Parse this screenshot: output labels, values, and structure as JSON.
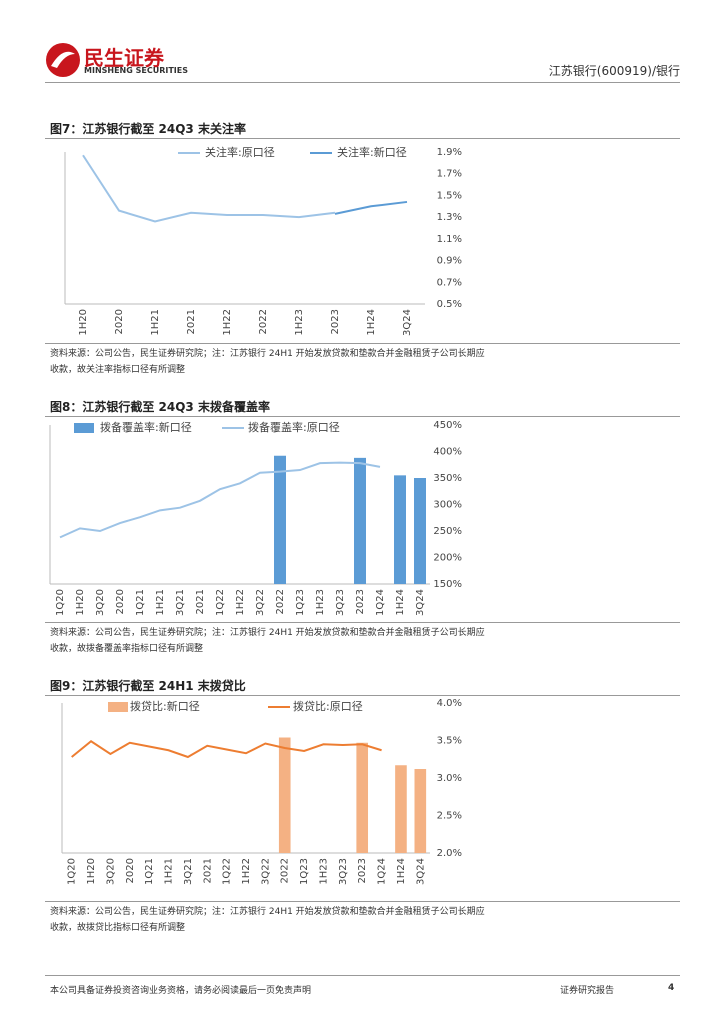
{
  "header": {
    "brand": "民生证券",
    "brand_en": "MINSHENG SECURITIES",
    "report": "江苏银行(600919)/银行"
  },
  "chart_data": [
    {
      "type": "line",
      "title": "图7：江苏银行截至 24Q3 末关注率",
      "categories": [
        "1H20",
        "2020",
        "1H21",
        "2021",
        "1H22",
        "2022",
        "1H23",
        "2023",
        "1H24",
        "3Q24"
      ],
      "series": [
        {
          "name": "关注率:原口径",
          "type": "line",
          "color": "#9dc3e6",
          "values": [
            1.87,
            1.36,
            1.26,
            1.34,
            1.32,
            1.32,
            1.3,
            1.34,
            null,
            null
          ]
        },
        {
          "name": "关注率:新口径",
          "type": "line",
          "color": "#5b9bd5",
          "values": [
            null,
            null,
            null,
            null,
            null,
            null,
            null,
            1.33,
            1.4,
            1.44
          ]
        }
      ],
      "ylim": [
        0.5,
        1.9
      ],
      "yticks": [
        {
          "value": 0.5,
          "label": "0.5%"
        },
        {
          "value": 0.7,
          "label": "0.7%"
        },
        {
          "value": 0.9,
          "label": "0.9%"
        },
        {
          "value": 1.1,
          "label": "1.1%"
        },
        {
          "value": 1.3,
          "label": "1.3%"
        },
        {
          "value": 1.5,
          "label": "1.5%"
        },
        {
          "value": 1.7,
          "label": "1.7%"
        },
        {
          "value": 1.9,
          "label": "1.9%"
        }
      ],
      "grid": false,
      "note": "资料来源：公司公告，民生证券研究院；注：江苏银行 24H1 开始发放贷款和垫款合并金融租赁子公司长期应收款，故关注率指标口径有所调整"
    },
    {
      "type": "combo",
      "title": "图8：江苏银行截至 24Q3 末拨备覆盖率",
      "categories": [
        "1Q20",
        "1H20",
        "3Q20",
        "2020",
        "1Q21",
        "1H21",
        "3Q21",
        "2021",
        "1Q22",
        "1H22",
        "3Q22",
        "2022",
        "1Q23",
        "1H23",
        "3Q23",
        "2023",
        "1Q24",
        "1H24",
        "3Q24"
      ],
      "series": [
        {
          "name": "拨备覆盖率:新口径",
          "type": "bar",
          "color": "#5b9bd5",
          "values": [
            null,
            null,
            null,
            null,
            null,
            null,
            null,
            null,
            null,
            null,
            null,
            392,
            null,
            null,
            null,
            388,
            null,
            355,
            350
          ]
        },
        {
          "name": "拨备覆盖率:原口径",
          "type": "line",
          "color": "#9dc3e6",
          "values": [
            238,
            255,
            250,
            265,
            276,
            289,
            294,
            307,
            329,
            340,
            360,
            362,
            365,
            378,
            379,
            378,
            371,
            null,
            null
          ]
        }
      ],
      "ylim": [
        150,
        450
      ],
      "yticks": [
        {
          "value": 150,
          "label": "150%"
        },
        {
          "value": 200,
          "label": "200%"
        },
        {
          "value": 250,
          "label": "250%"
        },
        {
          "value": 300,
          "label": "300%"
        },
        {
          "value": 350,
          "label": "350%"
        },
        {
          "value": 400,
          "label": "400%"
        },
        {
          "value": 450,
          "label": "450%"
        }
      ],
      "grid": false,
      "note": "资料来源：公司公告，民生证券研究院；注：江苏银行 24H1 开始发放贷款和垫款合并金融租赁子公司长期应收款，故拨备覆盖率指标口径有所调整"
    },
    {
      "type": "combo",
      "title": "图9：江苏银行截至 24H1 末拨贷比",
      "categories": [
        "1Q20",
        "1H20",
        "3Q20",
        "2020",
        "1Q21",
        "1H21",
        "3Q21",
        "2021",
        "1Q22",
        "1H22",
        "3Q22",
        "2022",
        "1Q23",
        "1H23",
        "3Q23",
        "2023",
        "1Q24",
        "1H24",
        "3Q24"
      ],
      "series": [
        {
          "name": "拨贷比:新口径",
          "type": "bar",
          "color": "#f4b183",
          "values": [
            null,
            null,
            null,
            null,
            null,
            null,
            null,
            null,
            null,
            null,
            null,
            3.54,
            null,
            null,
            null,
            3.47,
            null,
            3.17,
            3.12
          ]
        },
        {
          "name": "拨贷比:原口径",
          "type": "line",
          "color": "#ed7d31",
          "values": [
            3.28,
            3.49,
            3.32,
            3.47,
            3.42,
            3.37,
            3.28,
            3.43,
            3.38,
            3.33,
            3.46,
            3.4,
            3.36,
            3.45,
            3.44,
            3.45,
            3.37,
            null,
            null
          ]
        }
      ],
      "ylim": [
        2.0,
        4.0
      ],
      "yticks": [
        {
          "value": 2.0,
          "label": "2.0%"
        },
        {
          "value": 2.5,
          "label": "2.5%"
        },
        {
          "value": 3.0,
          "label": "3.0%"
        },
        {
          "value": 3.5,
          "label": "3.5%"
        },
        {
          "value": 4.0,
          "label": "4.0%"
        }
      ],
      "grid": false,
      "note": "资料来源：公司公告，民生证券研究院；注：江苏银行 24H1 开始发放贷款和垫款合并金融租赁子公司长期应收款，故拨贷比指标口径有所调整"
    }
  ],
  "footer": {
    "disclaimer": "本公司具备证券投资咨询业务资格，请务必阅读最后一页免责声明",
    "doc_type": "证券研究报告",
    "page": "4"
  }
}
